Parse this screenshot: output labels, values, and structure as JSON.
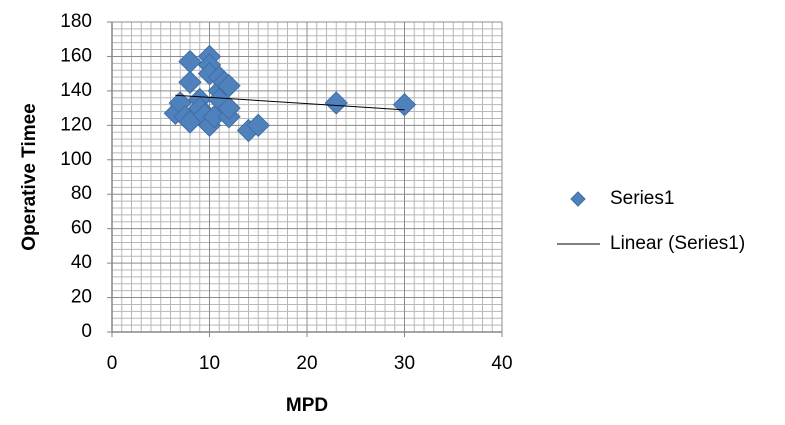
{
  "chart_data": {
    "type": "scatter",
    "xlabel": "MPD",
    "ylabel": "Operative Timee",
    "series": [
      {
        "name": "Series1",
        "type": "scatter",
        "color": "#4f81bd",
        "x": [
          6.5,
          7,
          7.5,
          8,
          8,
          8,
          9,
          9,
          9.5,
          10,
          10,
          10,
          10,
          10.5,
          11,
          11,
          11,
          11.5,
          12,
          12,
          12,
          14,
          15,
          23,
          30
        ],
        "values": [
          127,
          133,
          125,
          145,
          157,
          122,
          135,
          130,
          126,
          160,
          155,
          150,
          120,
          125,
          148,
          140,
          135,
          145,
          143,
          125,
          130,
          117,
          120,
          133,
          132
        ]
      },
      {
        "name": "Linear (Series1)",
        "type": "line",
        "color": "#000000",
        "x": [
          6.5,
          30
        ],
        "values": [
          137.5,
          129
        ]
      }
    ],
    "xlim": [
      0,
      40
    ],
    "xticks": [
      0,
      10,
      20,
      30,
      40
    ],
    "ylim": [
      0,
      180
    ],
    "yticks": [
      0,
      20,
      40,
      60,
      80,
      100,
      120,
      140,
      160,
      180
    ],
    "grid": true,
    "minor_grid": true,
    "legend": "right"
  }
}
